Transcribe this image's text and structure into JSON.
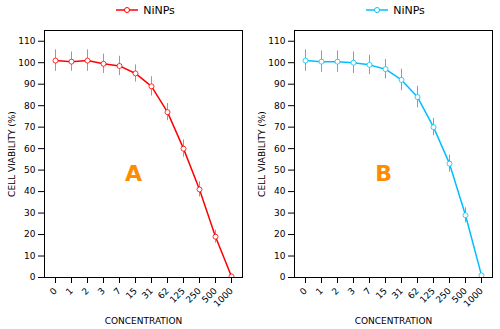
{
  "chart_data": [
    {
      "type": "line",
      "categories": [
        "0",
        "1",
        "2",
        "3",
        "7",
        "15",
        "31",
        "62",
        "125",
        "250",
        "500",
        "1000"
      ],
      "series": [
        {
          "name": "NiNPs",
          "color": "#FF0000",
          "marker": "o",
          "values": [
            101,
            100.5,
            101,
            99.5,
            98.5,
            95,
            89,
            77,
            60,
            41,
            19,
            0.5
          ],
          "errors": [
            5,
            4.5,
            5,
            4.5,
            4.5,
            4,
            4.5,
            4,
            4,
            3.5,
            3,
            0.5
          ]
        }
      ],
      "xlabel": "CONCENTRATION",
      "ylabel": "CELL VIABILITY (%)",
      "ylim": [
        0,
        115
      ],
      "yticks": [
        0,
        10,
        20,
        30,
        40,
        50,
        60,
        70,
        80,
        90,
        100,
        110
      ],
      "annotations": [
        {
          "text": "A"
        }
      ],
      "legend": "upper center",
      "grid": false
    },
    {
      "type": "line",
      "categories": [
        "0",
        "1",
        "2",
        "3",
        "7",
        "15",
        "31",
        "62",
        "125",
        "250",
        "500",
        "1000"
      ],
      "series": [
        {
          "name": "NiNPs",
          "color": "#00BFFF",
          "marker": "o",
          "values": [
            101,
            100.5,
            100.5,
            100,
            99,
            97,
            92,
            84,
            70,
            53,
            29,
            1
          ],
          "errors": [
            5,
            5,
            5,
            5,
            4.5,
            4.5,
            5,
            5,
            4,
            4,
            3.5,
            0.5
          ]
        }
      ],
      "xlabel": "CONCENTRATION",
      "ylabel": "CELL VIABILITY (%)",
      "ylim": [
        0,
        115
      ],
      "yticks": [
        0,
        10,
        20,
        30,
        40,
        50,
        60,
        70,
        80,
        90,
        100,
        110
      ],
      "annotations": [
        {
          "text": "B"
        }
      ],
      "legend": "upper center",
      "grid": false
    }
  ]
}
